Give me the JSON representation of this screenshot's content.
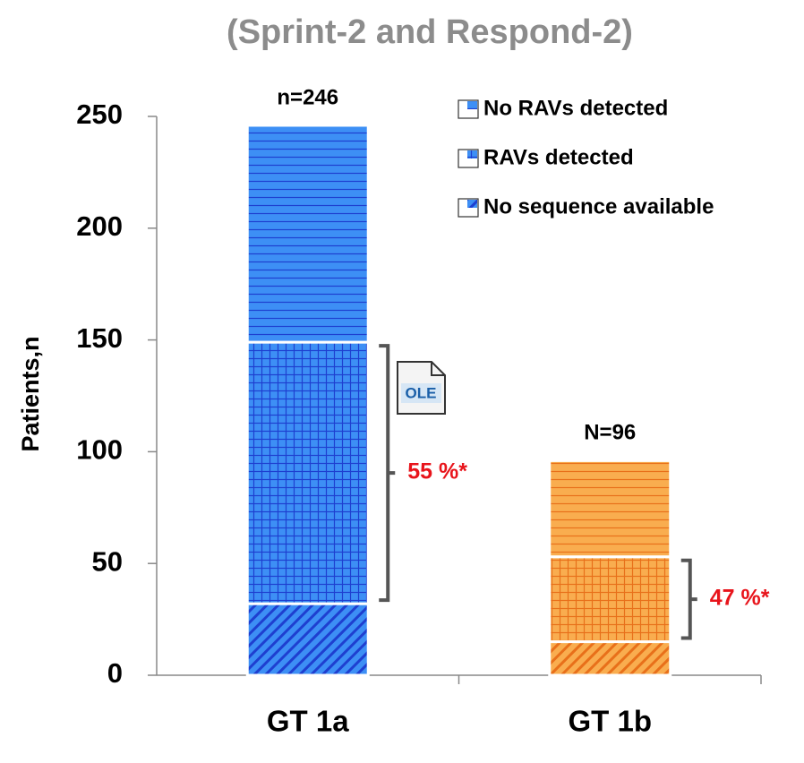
{
  "chart_data": {
    "type": "stacked_bar",
    "title": "(Sprint-2 and Respond-2)",
    "y_label": "Patients,n",
    "categories": [
      "GT 1a",
      "GT 1b"
    ],
    "category_colors": [
      "#3d8ff5",
      "#f9ad4f"
    ],
    "pattern_colors": [
      "#1e3fd0",
      "#e8701a"
    ],
    "series": [
      {
        "name": "No sequence available",
        "pattern": "diagonal",
        "values": [
          32,
          15
        ]
      },
      {
        "name": "RAVs detected",
        "pattern": "grid",
        "values": [
          117,
          38
        ]
      },
      {
        "name": "No RAVs detected",
        "pattern": "horizontal",
        "values": [
          97,
          43
        ]
      }
    ],
    "total_labels": [
      "n=246",
      "N=96"
    ],
    "bracket_labels": [
      "55 %*",
      "47 %*"
    ],
    "icon_label": "OLE",
    "ylim": [
      0,
      250
    ],
    "yticks": [
      0,
      50,
      100,
      150,
      200,
      250
    ],
    "legend": "upper right"
  }
}
